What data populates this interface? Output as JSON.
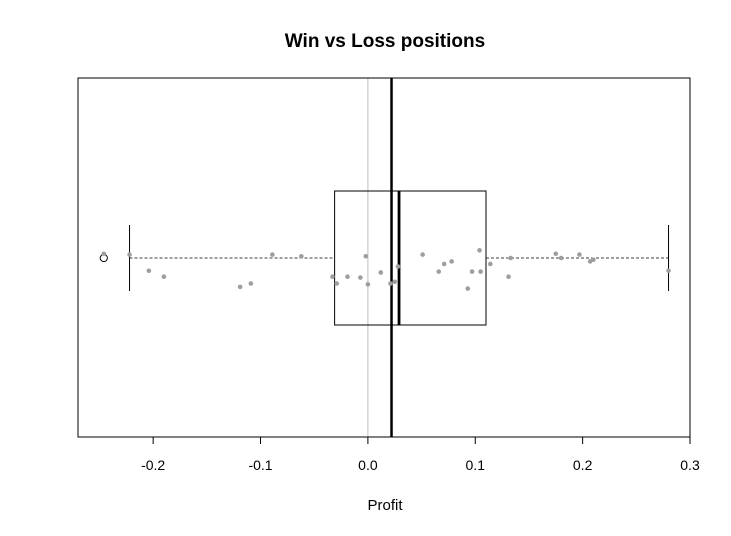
{
  "chart_data": {
    "type": "boxplot",
    "title": "Win vs Loss positions",
    "xlabel": "Profit",
    "ylabel": "",
    "xlim": [
      -0.27,
      0.3
    ],
    "x_ticks": [
      -0.2,
      -0.1,
      0.0,
      0.1,
      0.2,
      0.3
    ],
    "x_tick_labels": [
      "-0.2",
      "-0.1",
      "0.0",
      "0.1",
      "0.2",
      "0.3"
    ],
    "grid": false,
    "box": {
      "lower_whisker": -0.222,
      "q1": -0.031,
      "median": 0.029,
      "q3": 0.11,
      "upper_whisker": 0.28,
      "outliers": [
        -0.246
      ]
    },
    "reference_lines": [
      {
        "x": 0.0,
        "color": "#bebebe"
      },
      {
        "x": 0.022,
        "color": "#000000"
      }
    ],
    "jitter_points": [
      {
        "x": -0.246,
        "y": 0.05
      },
      {
        "x": -0.222,
        "y": 0.04
      },
      {
        "x": -0.204,
        "y": -0.15
      },
      {
        "x": -0.19,
        "y": -0.22
      },
      {
        "x": -0.119,
        "y": -0.34
      },
      {
        "x": -0.109,
        "y": -0.3
      },
      {
        "x": -0.089,
        "y": 0.04
      },
      {
        "x": -0.062,
        "y": 0.02
      },
      {
        "x": -0.033,
        "y": -0.22
      },
      {
        "x": -0.029,
        "y": -0.3
      },
      {
        "x": -0.019,
        "y": -0.22
      },
      {
        "x": -0.007,
        "y": -0.23
      },
      {
        "x": -0.002,
        "y": 0.02
      },
      {
        "x": 0.0,
        "y": -0.31
      },
      {
        "x": 0.012,
        "y": -0.17
      },
      {
        "x": 0.021,
        "y": -0.3
      },
      {
        "x": 0.025,
        "y": -0.28
      },
      {
        "x": 0.028,
        "y": -0.1
      },
      {
        "x": 0.051,
        "y": 0.04
      },
      {
        "x": 0.066,
        "y": -0.16
      },
      {
        "x": 0.071,
        "y": -0.07
      },
      {
        "x": 0.078,
        "y": -0.04
      },
      {
        "x": 0.093,
        "y": -0.36
      },
      {
        "x": 0.097,
        "y": -0.16
      },
      {
        "x": 0.104,
        "y": 0.09
      },
      {
        "x": 0.105,
        "y": -0.16
      },
      {
        "x": 0.114,
        "y": -0.07
      },
      {
        "x": 0.131,
        "y": -0.22
      },
      {
        "x": 0.133,
        "y": 0.0
      },
      {
        "x": 0.175,
        "y": 0.05
      },
      {
        "x": 0.18,
        "y": 0.0
      },
      {
        "x": 0.197,
        "y": 0.04
      },
      {
        "x": 0.207,
        "y": -0.04
      },
      {
        "x": 0.21,
        "y": -0.02
      },
      {
        "x": 0.28,
        "y": -0.15
      }
    ],
    "colors": {
      "box": "#000000",
      "points": "#9e9e9e",
      "zero_line": "#bebebe",
      "mean_line": "#000000"
    }
  }
}
